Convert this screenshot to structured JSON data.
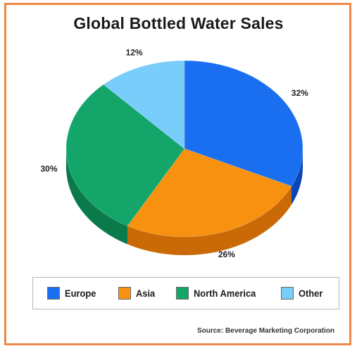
{
  "chart_data": {
    "type": "pie",
    "title": "Global Bottled Water Sales",
    "slices": [
      {
        "label": "Europe",
        "value": 32,
        "value_label": "32%",
        "color": "#1a6ff0",
        "side_color": "#0b46b8"
      },
      {
        "label": "Asia",
        "value": 26,
        "value_label": "26%",
        "color": "#f7910f",
        "side_color": "#c96a06"
      },
      {
        "label": "North America",
        "value": 30,
        "value_label": "30%",
        "color": "#13a569",
        "side_color": "#0a7a4a"
      },
      {
        "label": "Other",
        "value": 12,
        "value_label": "12%",
        "color": "#79cdfb",
        "side_color": "#4ea6d8"
      }
    ],
    "legend": [
      "Europe",
      "Asia",
      "North America",
      "Other"
    ],
    "legend_position": "bottom",
    "source": "Source: Beverage Marketing Corporation"
  }
}
